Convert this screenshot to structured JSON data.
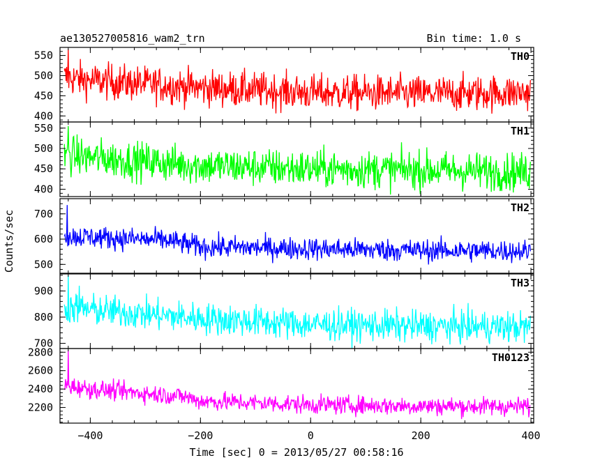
{
  "chart_data": {
    "type": "line",
    "title": "ae130527005816_wam2_trn",
    "bin_time_label": "Bin time: 1.0 s",
    "xlabel": "Time [sec] 0 = 2013/05/27 00:58:16",
    "ylabel": "Counts/sec",
    "xlim": [
      -455,
      405
    ],
    "xticks": [
      -400,
      -200,
      0,
      200,
      400
    ],
    "xtick_labels": [
      "−400",
      "−200",
      "0",
      "200",
      "400"
    ],
    "grid": false,
    "x_start": -447,
    "x_end": 399,
    "x_step": 1,
    "panels": [
      {
        "name": "TH0",
        "color": "#ff0000",
        "ylim": [
          385,
          570
        ],
        "yticks": [
          400,
          450,
          500,
          550
        ],
        "spikes": [
          {
            "x": -440,
            "y": 565
          }
        ],
        "trend": [
          [
            -447,
            495
          ],
          [
            -400,
            488
          ],
          [
            -200,
            470
          ],
          [
            0,
            458
          ],
          [
            200,
            455
          ],
          [
            399,
            458
          ]
        ],
        "noise": 22
      },
      {
        "name": "TH1",
        "color": "#00ff00",
        "ylim": [
          382,
          565
        ],
        "yticks": [
          400,
          450,
          500,
          550
        ],
        "spikes": [
          {
            "x": -440,
            "y": 555
          }
        ],
        "trend": [
          [
            -447,
            485
          ],
          [
            -400,
            478
          ],
          [
            -200,
            458
          ],
          [
            0,
            450
          ],
          [
            200,
            447
          ],
          [
            399,
            442
          ]
        ],
        "noise": 23
      },
      {
        "name": "TH2",
        "color": "#0000ff",
        "ylim": [
          465,
          760
        ],
        "yticks": [
          500,
          600,
          700
        ],
        "spikes": [
          {
            "x": -442,
            "y": 735
          }
        ],
        "trend": [
          [
            -447,
            612
          ],
          [
            -400,
            608
          ],
          [
            -260,
            595
          ],
          [
            -200,
            570
          ],
          [
            0,
            562
          ],
          [
            200,
            555
          ],
          [
            399,
            553
          ]
        ],
        "noise": 22
      },
      {
        "name": "TH3",
        "color": "#00ffff",
        "ylim": [
          680,
          965
        ],
        "yticks": [
          700,
          800,
          900
        ],
        "spikes": [
          {
            "x": -440,
            "y": 960
          },
          {
            "x": -420,
            "y": 920
          }
        ],
        "trend": [
          [
            -447,
            838
          ],
          [
            -400,
            828
          ],
          [
            -200,
            795
          ],
          [
            0,
            772
          ],
          [
            200,
            765
          ],
          [
            399,
            762
          ]
        ],
        "noise": 30
      },
      {
        "name": "TH0123",
        "color": "#ff00ff",
        "ylim": [
          2030,
          2840
        ],
        "yticks": [
          2200,
          2400,
          2600,
          2800
        ],
        "spikes": [
          {
            "x": -440,
            "y": 2820
          }
        ],
        "trend": [
          [
            -447,
            2440
          ],
          [
            -400,
            2400
          ],
          [
            -230,
            2320
          ],
          [
            -200,
            2270
          ],
          [
            0,
            2230
          ],
          [
            200,
            2215
          ],
          [
            399,
            2210
          ]
        ],
        "noise": 50
      }
    ]
  }
}
